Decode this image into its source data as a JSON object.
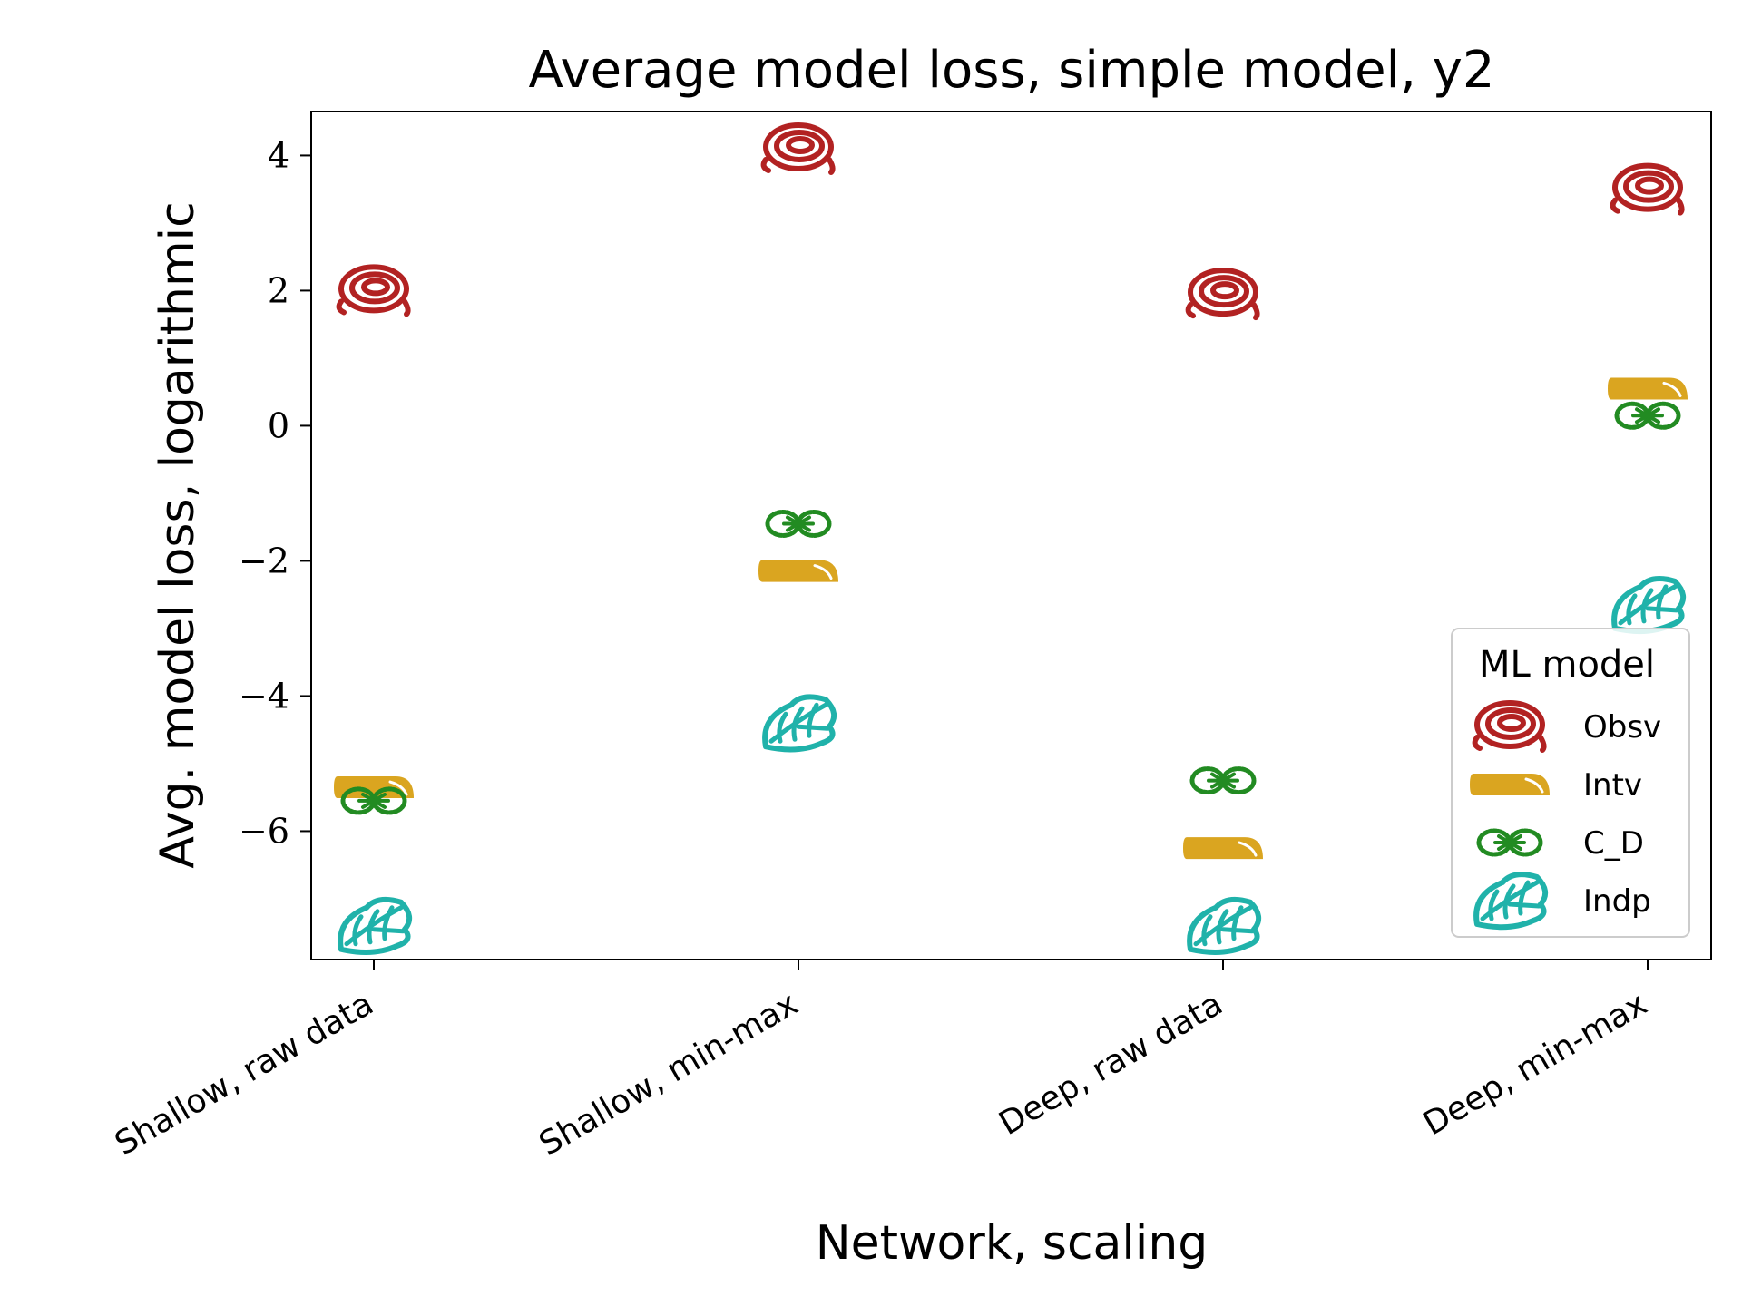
{
  "chart_data": {
    "type": "scatter",
    "title": "Average model loss, simple model, y2",
    "xlabel": "Network, scaling",
    "ylabel": "Avg. model loss, logarithmic",
    "categories": [
      "Shallow, raw data",
      "Shallow, min-max",
      "Deep, raw data",
      "Deep, min-max"
    ],
    "ylim": [
      -7.9,
      4.65
    ],
    "yticks": [
      4,
      2,
      0,
      -2,
      -4,
      -6
    ],
    "ytick_labels": [
      "4",
      "2",
      "0",
      "−2",
      "−4",
      "−6"
    ],
    "grid": false,
    "legend": {
      "title": "ML model",
      "position": "lower-right"
    },
    "series": [
      {
        "name": "Obsv",
        "color": "#b22222",
        "marker": "scribble-circle",
        "values": [
          2.0,
          4.1,
          1.95,
          3.5
        ]
      },
      {
        "name": "Intv",
        "color": "#daa520",
        "marker": "rounded-bar",
        "values": [
          -5.35,
          -2.15,
          -6.25,
          0.55
        ]
      },
      {
        "name": "C_D",
        "color": "#228b22",
        "marker": "infinity",
        "values": [
          -5.55,
          -1.45,
          -5.25,
          0.15
        ]
      },
      {
        "name": "Indp",
        "color": "#20b2aa",
        "marker": "leaf",
        "values": [
          -7.4,
          -4.4,
          -7.4,
          -2.65
        ]
      }
    ]
  }
}
